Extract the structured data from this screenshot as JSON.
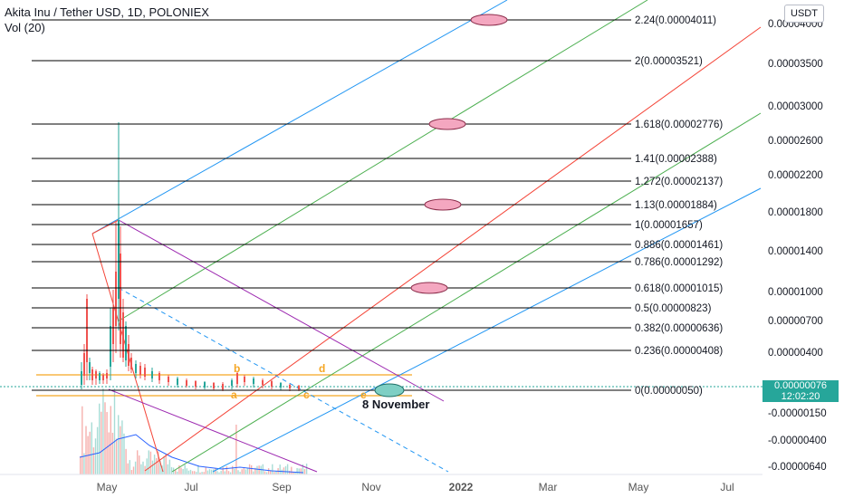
{
  "header": {
    "title": "Akita Inu / Tether USD, 1D, POLONIEX",
    "volume_label": "Vol (20)"
  },
  "currency_button": "USDT",
  "last_price": {
    "value": "0.00000076",
    "countdown": "12:02:20"
  },
  "annotation": "8 November",
  "wave_labels": [
    "a",
    "b",
    "c",
    "d",
    "e"
  ],
  "colors": {
    "candle_up": "#26a69a",
    "candle_down": "#ef5350",
    "volume_up": "#a8dcd6",
    "volume_down": "#f6b1ae",
    "fib_line": "#000000",
    "orange": "#f5a623",
    "purple": "#9c27b0",
    "blue": "#2196f3",
    "green": "#4caf50",
    "red": "#f44336",
    "ellipse_pink": "#f4a7c0"
  },
  "chart_data": {
    "type": "line",
    "title": "Akita Inu / Tether USD, 1D, POLONIEX",
    "x_ticks": [
      "May",
      "Jul",
      "Sep",
      "Nov",
      "2022",
      "Mar",
      "May",
      "Jul"
    ],
    "y_ticks": [
      "0.00004000",
      "0.00003500",
      "0.00003000",
      "0.00002600",
      "0.00002200",
      "0.00001800",
      "0.00001400",
      "0.00001000",
      "0.00000700",
      "0.00000400",
      "-0.00000150",
      "-0.00000400",
      "-0.00000640"
    ],
    "fib_levels": [
      {
        "ratio": "2.24",
        "price": "0.00004011"
      },
      {
        "ratio": "2",
        "price": "0.00003521"
      },
      {
        "ratio": "1.618",
        "price": "0.00002776"
      },
      {
        "ratio": "1.41",
        "price": "0.00002388"
      },
      {
        "ratio": "1.272",
        "price": "0.00002137"
      },
      {
        "ratio": "1.13",
        "price": "0.00001884"
      },
      {
        "ratio": "1",
        "price": "0.00001657"
      },
      {
        "ratio": "0.886",
        "price": "0.00001461"
      },
      {
        "ratio": "0.786",
        "price": "0.00001292"
      },
      {
        "ratio": "0.618",
        "price": "0.00001015"
      },
      {
        "ratio": "0.5",
        "price": "0.00000823"
      },
      {
        "ratio": "0.382",
        "price": "0.00000636"
      },
      {
        "ratio": "0.236",
        "price": "0.00000408"
      },
      {
        "ratio": "0",
        "price": "0.00000050"
      }
    ],
    "last_price": 7.6e-07,
    "legend": "none",
    "grid": false
  }
}
